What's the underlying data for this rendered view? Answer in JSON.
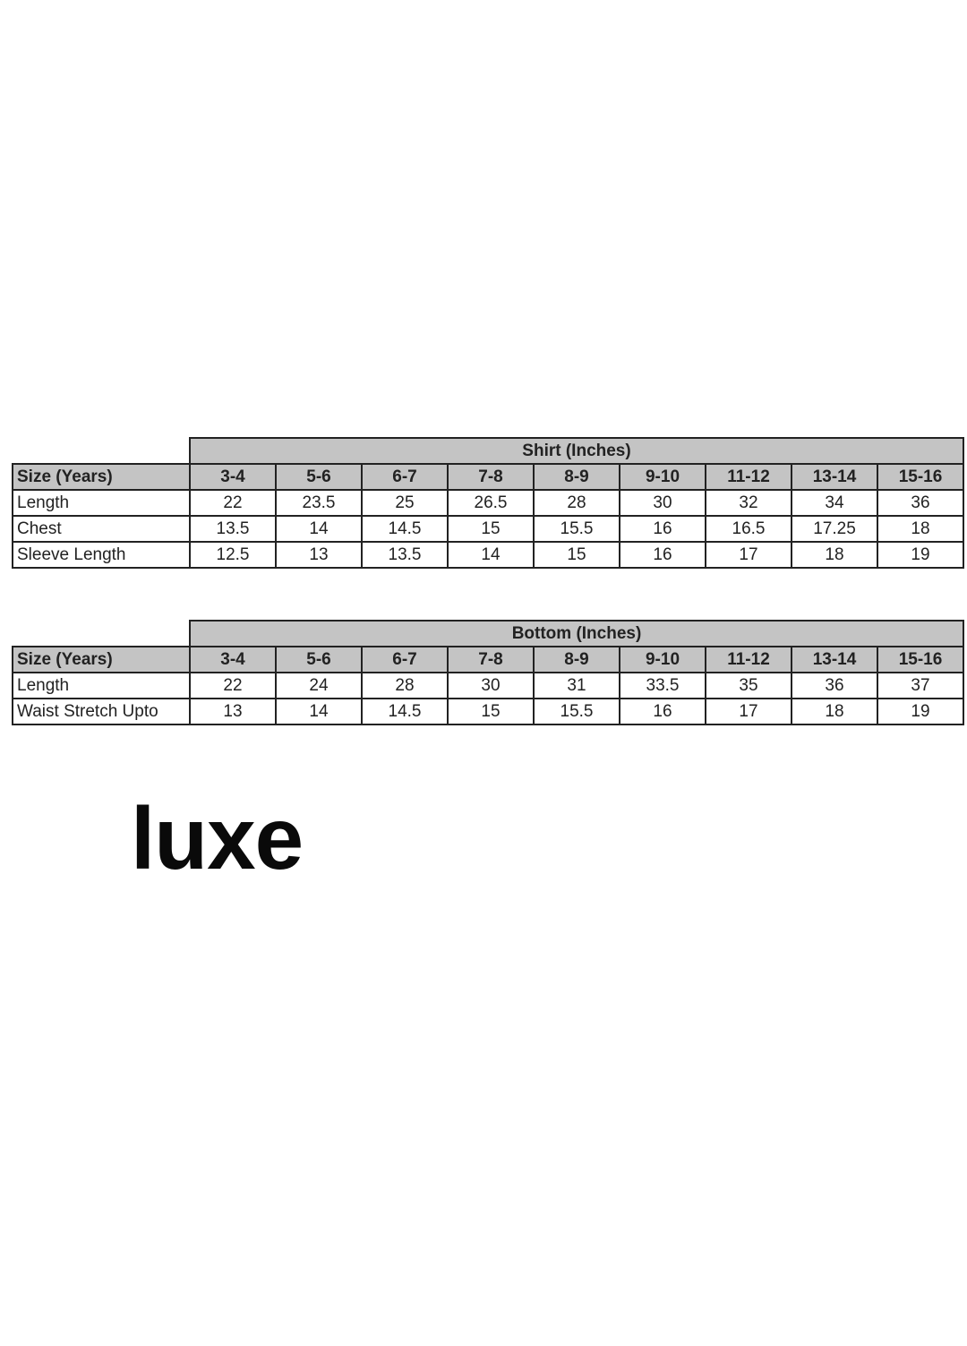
{
  "tables": [
    {
      "id": "shirt",
      "title": "Shirt (Inches)",
      "header_label": "Size (Years)",
      "sizes": [
        "3-4",
        "5-6",
        "6-7",
        "7-8",
        "8-9",
        "9-10",
        "11-12",
        "13-14",
        "15-16"
      ],
      "rows": [
        {
          "label": "Length",
          "values": [
            "22",
            "23.5",
            "25",
            "26.5",
            "28",
            "30",
            "32",
            "34",
            "36"
          ]
        },
        {
          "label": "Chest",
          "values": [
            "13.5",
            "14",
            "14.5",
            "15",
            "15.5",
            "16",
            "16.5",
            "17.25",
            "18"
          ]
        },
        {
          "label": "Sleeve Length",
          "values": [
            "12.5",
            "13",
            "13.5",
            "14",
            "15",
            "16",
            "17",
            "18",
            "19"
          ]
        }
      ]
    },
    {
      "id": "bottom",
      "title": "Bottom (Inches)",
      "header_label": "Size (Years)",
      "sizes": [
        "3-4",
        "5-6",
        "6-7",
        "7-8",
        "8-9",
        "9-10",
        "11-12",
        "13-14",
        "15-16"
      ],
      "rows": [
        {
          "label": "Length",
          "values": [
            "22",
            "24",
            "28",
            "30",
            "31",
            "33.5",
            "35",
            "36",
            "37"
          ]
        },
        {
          "label": "Waist Stretch Upto",
          "values": [
            "13",
            "14",
            "14.5",
            "15",
            "15.5",
            "16",
            "17",
            "18",
            "19"
          ]
        }
      ]
    }
  ],
  "brand": {
    "logo_text": "luxe"
  }
}
